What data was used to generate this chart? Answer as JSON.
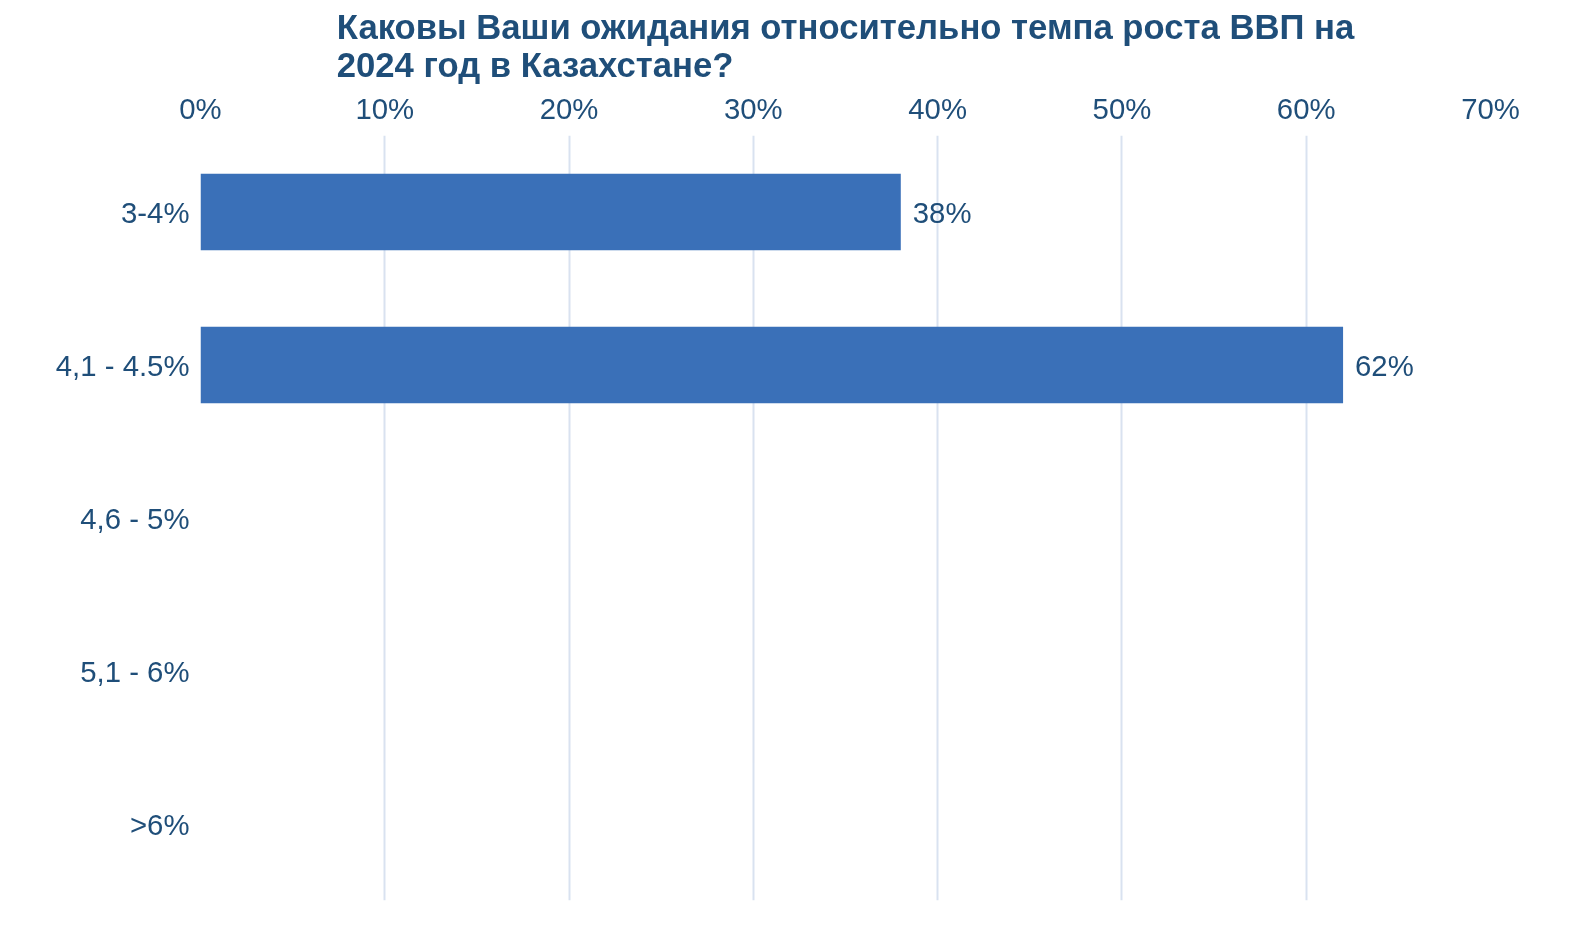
{
  "chart_data": {
    "type": "bar",
    "orientation": "horizontal",
    "title": "Каковы Ваши ожидания относительно темпа роста ВВП на 2024 год в Казахстане?",
    "categories": [
      "3-4%",
      "4,1 - 4.5%",
      "4,6 - 5%",
      "5,1 - 6%",
      ">6%"
    ],
    "values": [
      38,
      62,
      0,
      0,
      0
    ],
    "value_labels": [
      "38%",
      "62%",
      null,
      null,
      null
    ],
    "color": "#3a70b8",
    "xlim": [
      0,
      70
    ],
    "xticks": [
      {
        "value": 0,
        "label": "0%"
      },
      {
        "value": 10,
        "label": "10%"
      },
      {
        "value": 20,
        "label": "20%"
      },
      {
        "value": 30,
        "label": "30%"
      },
      {
        "value": 40,
        "label": "40%"
      },
      {
        "value": 50,
        "label": "50%"
      },
      {
        "value": 60,
        "label": "60%"
      },
      {
        "value": 70,
        "label": "70%"
      }
    ],
    "grid": "x"
  }
}
